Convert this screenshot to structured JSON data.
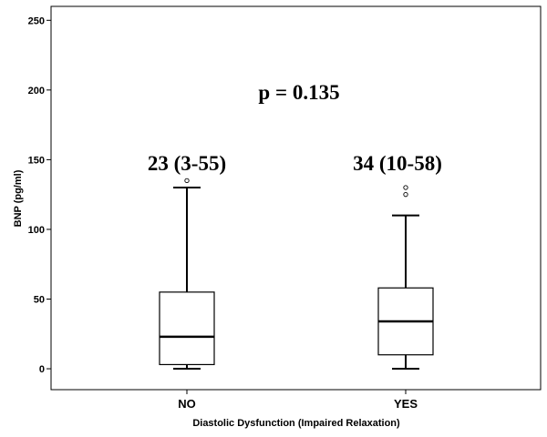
{
  "chart_data": {
    "type": "box",
    "title": "",
    "xlabel": "Diastolic Dysfunction (Impaired Relaxation)",
    "ylabel": "BNP (pg/ml)",
    "ylim": [
      -15,
      260
    ],
    "yticks": [
      0,
      50,
      100,
      150,
      200,
      250
    ],
    "categories": [
      "NO",
      "YES"
    ],
    "boxes": [
      {
        "category": "NO",
        "min": 0,
        "q1": 3,
        "median": 23,
        "q3": 55,
        "max": 130,
        "outliers": [
          135
        ]
      },
      {
        "category": "YES",
        "min": 0,
        "q1": 10,
        "median": 34,
        "q3": 58,
        "max": 110,
        "outliers": [
          125,
          130
        ]
      }
    ],
    "annotations": {
      "p_value": "p = 0.135",
      "group_labels": [
        "23 (3-55)",
        "34 (10-58)"
      ]
    },
    "grid": false,
    "legend": "none"
  }
}
